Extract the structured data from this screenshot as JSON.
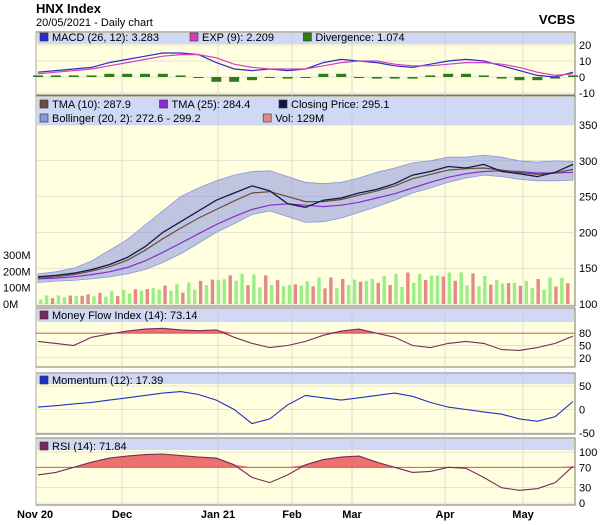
{
  "header": {
    "title": "HNX Index",
    "subtitle": "20/05/2021 - Daily chart",
    "brand": "VCBS"
  },
  "colors": {
    "panel_bg": "#ffffe0",
    "band_bg": "#cfd8f4",
    "grid": "#c8c8c8",
    "price": "#101848",
    "tma10": "#6e4a3c",
    "tma25": "#8a2bd0",
    "bollinger": "#8a96de",
    "vol_up": "#99ee88",
    "vol_down": "#e28a8a",
    "macd": "#2b2bc8",
    "exp9": "#d43ec4",
    "divergence": "#2e7d1a",
    "mfi_line": "#7a2a5a",
    "mfi_fill": "#e85a5a",
    "momentum": "#2232c0",
    "rsi_line": "#7a2a5a",
    "rsi_fill": "#e85a5a",
    "ref_line": "#d04040"
  },
  "x_axis_labels": [
    "Nov 20",
    "Dec",
    "Jan 21",
    "Feb",
    "Mar",
    "Apr",
    "May"
  ],
  "chart_data": [
    {
      "type": "line",
      "panel": "MACD",
      "legend": [
        {
          "label": "MACD (26, 12): 3.283",
          "color": "#2b2bc8"
        },
        {
          "label": "EXP (9): 2.209",
          "color": "#d43ec4"
        },
        {
          "label": "Divergence: 1.074",
          "color": "#2e7d1a"
        }
      ],
      "y_ticks": [
        "20",
        "10",
        "0",
        "-10"
      ],
      "ylim": [
        -10,
        20
      ],
      "series": [
        {
          "name": "MACD",
          "values": [
            3,
            4,
            5,
            6,
            9,
            11,
            13,
            15,
            15,
            14,
            9,
            5,
            4,
            5,
            4,
            5,
            9,
            11,
            10,
            9,
            7,
            6,
            8,
            10,
            11,
            10,
            7,
            4,
            1,
            0,
            3
          ]
        },
        {
          "name": "EXP",
          "values": [
            2,
            3,
            4,
            5,
            7,
            9,
            11,
            13,
            14,
            14,
            12,
            8,
            6,
            5,
            5,
            5,
            7,
            9,
            10,
            10,
            8,
            7,
            7,
            8,
            9,
            9,
            8,
            6,
            3,
            1,
            2
          ]
        },
        {
          "name": "Divergence",
          "values": [
            1,
            1,
            1,
            1,
            2,
            2,
            2,
            2,
            1,
            0,
            -3,
            -3,
            -2,
            0,
            -1,
            0,
            2,
            2,
            0,
            -1,
            -1,
            -1,
            1,
            2,
            2,
            1,
            -1,
            -2,
            -2,
            -1,
            1
          ]
        }
      ]
    },
    {
      "type": "line",
      "panel": "Price",
      "legend": [
        {
          "label": "TMA (10): 287.9",
          "color": "#6e4a3c"
        },
        {
          "label": "TMA (25): 284.4",
          "color": "#8a2bd0"
        },
        {
          "label": "Closing Price: 295.1",
          "color": "#101848"
        },
        {
          "label": "Bollinger (20, 2): 272.6 - 299.2",
          "color": "#8a96de"
        },
        {
          "label": "Vol: 129M",
          "color": "#e28a8a"
        }
      ],
      "y_ticks": [
        "350",
        "300",
        "250",
        "200",
        "150",
        "100"
      ],
      "vol_ticks": [
        "300M",
        "200M",
        "100M",
        "0M"
      ],
      "ylim": [
        100,
        350
      ],
      "series": [
        {
          "name": "Closing Price",
          "values": [
            138,
            140,
            143,
            148,
            155,
            165,
            180,
            200,
            215,
            230,
            245,
            255,
            265,
            258,
            240,
            235,
            245,
            248,
            255,
            260,
            268,
            280,
            285,
            292,
            290,
            295,
            285,
            282,
            278,
            284,
            295
          ]
        },
        {
          "name": "TMA (10)",
          "values": [
            136,
            138,
            141,
            146,
            152,
            161,
            175,
            191,
            206,
            220,
            232,
            244,
            255,
            257,
            250,
            243,
            243,
            246,
            252,
            258,
            265,
            275,
            281,
            287,
            289,
            290,
            287,
            284,
            281,
            283,
            288
          ]
        },
        {
          "name": "TMA (25)",
          "values": [
            135,
            136,
            138,
            141,
            145,
            151,
            160,
            172,
            185,
            198,
            211,
            222,
            232,
            238,
            240,
            238,
            236,
            238,
            242,
            248,
            254,
            262,
            270,
            277,
            282,
            285,
            286,
            285,
            283,
            283,
            284
          ]
        },
        {
          "name": "Bollinger upper",
          "values": [
            142,
            145,
            150,
            160,
            175,
            190,
            210,
            230,
            250,
            262,
            272,
            280,
            285,
            286,
            278,
            270,
            268,
            270,
            276,
            284,
            290,
            297,
            300,
            305,
            305,
            308,
            305,
            300,
            298,
            300,
            299
          ]
        },
        {
          "name": "Bollinger lower",
          "values": [
            130,
            132,
            133,
            135,
            138,
            142,
            148,
            158,
            170,
            185,
            200,
            212,
            225,
            230,
            222,
            214,
            215,
            220,
            228,
            236,
            245,
            255,
            262,
            270,
            276,
            280,
            278,
            274,
            272,
            272,
            273
          ]
        }
      ],
      "volume": [
        40,
        42,
        45,
        50,
        60,
        70,
        80,
        90,
        95,
        110,
        130,
        150,
        140,
        135,
        100,
        110,
        130,
        120,
        125,
        130,
        140,
        150,
        145,
        160,
        150,
        140,
        120,
        110,
        115,
        125,
        129
      ]
    },
    {
      "type": "area",
      "panel": "Money Flow Index",
      "legend": [
        {
          "label": "Money Flow Index (14): 73.14",
          "color": "#7a2a5a"
        }
      ],
      "y_ticks": [
        "80",
        "50",
        "20"
      ],
      "ylim": [
        0,
        100
      ],
      "ref_line": 80,
      "values": [
        60,
        55,
        50,
        70,
        78,
        85,
        90,
        92,
        88,
        86,
        88,
        70,
        55,
        45,
        50,
        60,
        75,
        85,
        90,
        80,
        70,
        50,
        45,
        55,
        60,
        55,
        40,
        38,
        45,
        55,
        73
      ]
    },
    {
      "type": "line",
      "panel": "Momentum",
      "legend": [
        {
          "label": "Momentum (12): 17.39",
          "color": "#2232c0"
        }
      ],
      "y_ticks": [
        "50",
        "0",
        "-50"
      ],
      "ylim": [
        -50,
        50
      ],
      "values": [
        5,
        8,
        12,
        15,
        20,
        25,
        30,
        35,
        38,
        32,
        20,
        0,
        -30,
        -20,
        10,
        30,
        25,
        20,
        25,
        30,
        35,
        28,
        15,
        5,
        0,
        -5,
        -10,
        -20,
        -25,
        -15,
        17
      ]
    },
    {
      "type": "area",
      "panel": "RSI",
      "legend": [
        {
          "label": "RSI (14): 71.84",
          "color": "#7a2a5a"
        }
      ],
      "y_ticks": [
        "100",
        "70",
        "30",
        "0"
      ],
      "ylim": [
        0,
        100
      ],
      "ref_line": 70,
      "values": [
        55,
        60,
        70,
        80,
        88,
        92,
        95,
        96,
        93,
        90,
        88,
        75,
        50,
        40,
        55,
        75,
        85,
        90,
        92,
        80,
        70,
        60,
        62,
        70,
        68,
        50,
        30,
        25,
        28,
        40,
        72
      ]
    }
  ]
}
